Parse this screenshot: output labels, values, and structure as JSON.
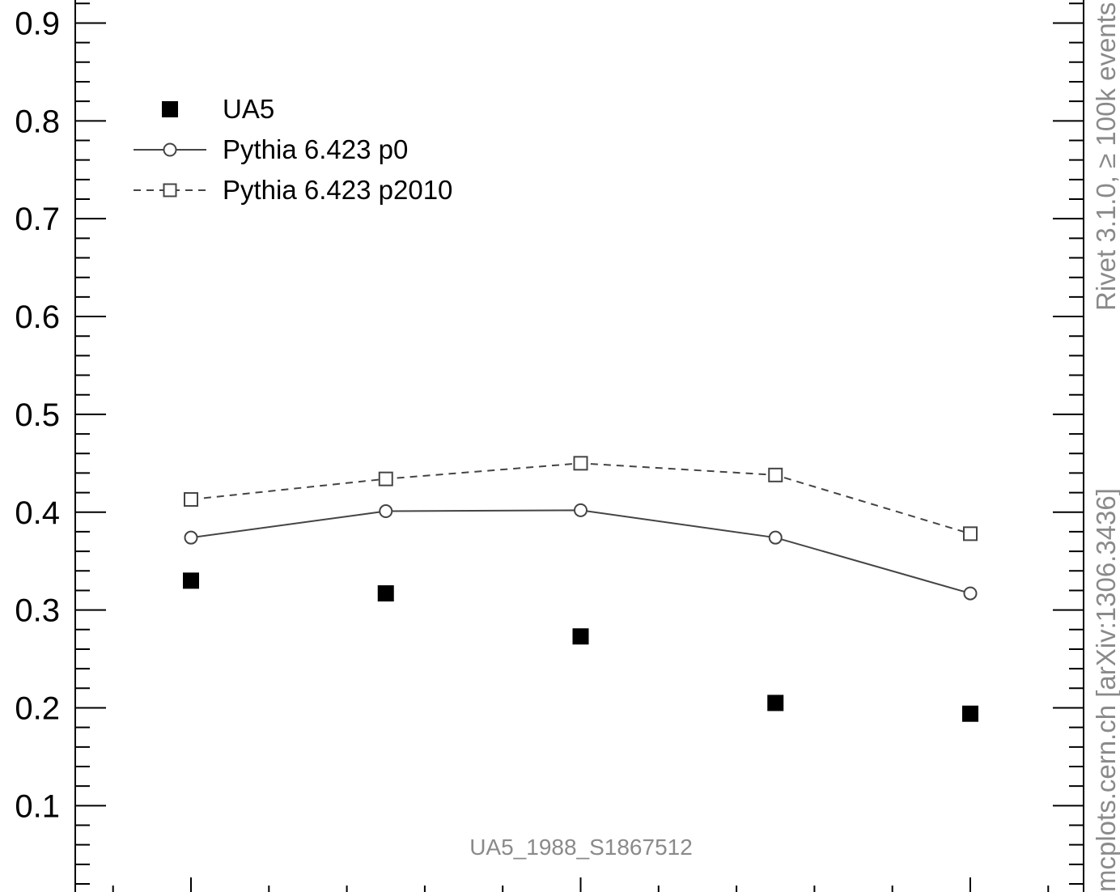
{
  "chart_data": {
    "type": "scatter",
    "x": [
      1,
      2,
      3,
      4,
      5
    ],
    "ylim": [
      0.0,
      0.92
    ],
    "y_tick_labels": [
      "0.9",
      "0.8",
      "0.7",
      "0.6",
      "0.5",
      "0.4",
      "0.3",
      "0.2",
      "0.1"
    ],
    "y_tick_values": [
      0.9,
      0.8,
      0.7,
      0.6,
      0.5,
      0.4,
      0.3,
      0.2,
      0.1
    ],
    "series": [
      {
        "name": "UA5",
        "style": "filled-square-markers",
        "values": [
          0.33,
          0.317,
          0.273,
          0.205,
          0.194
        ]
      },
      {
        "name": "Pythia 6.423 p0",
        "style": "solid-line-open-circle",
        "values": [
          0.374,
          0.401,
          0.402,
          0.374,
          0.317
        ]
      },
      {
        "name": "Pythia 6.423 p2010",
        "style": "dashed-line-open-square",
        "values": [
          0.413,
          0.434,
          0.45,
          0.438,
          0.378
        ]
      }
    ],
    "legend_position": "top-left",
    "watermark": "UA5_1988_S1867512",
    "side_text_upper": "Rivet 3.1.0, ≥ 100k events",
    "side_text_lower": "mcplots.cern.ch [arXiv:1306.3436]",
    "colors": {
      "data": "#000000",
      "mc_line": "#444444",
      "watermark": "#8a8a8a"
    }
  }
}
